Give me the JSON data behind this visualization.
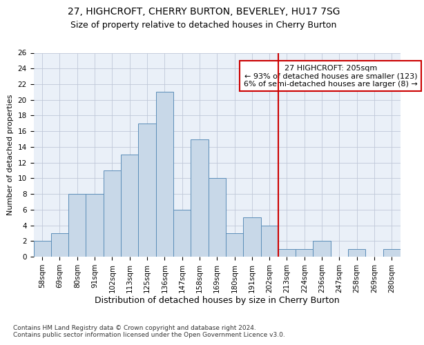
{
  "title1": "27, HIGHCROFT, CHERRY BURTON, BEVERLEY, HU17 7SG",
  "title2": "Size of property relative to detached houses in Cherry Burton",
  "xlabel": "Distribution of detached houses by size in Cherry Burton",
  "ylabel": "Number of detached properties",
  "footnote": "Contains HM Land Registry data © Crown copyright and database right 2024.\nContains public sector information licensed under the Open Government Licence v3.0.",
  "bin_labels": [
    "58sqm",
    "69sqm",
    "80sqm",
    "91sqm",
    "102sqm",
    "113sqm",
    "125sqm",
    "136sqm",
    "147sqm",
    "158sqm",
    "169sqm",
    "180sqm",
    "191sqm",
    "202sqm",
    "213sqm",
    "224sqm",
    "236sqm",
    "247sqm",
    "258sqm",
    "269sqm",
    "280sqm"
  ],
  "bar_heights": [
    2,
    3,
    8,
    8,
    11,
    13,
    17,
    21,
    6,
    15,
    10,
    3,
    5,
    4,
    1,
    1,
    2,
    0,
    1,
    0,
    1
  ],
  "bar_color": "#c8d8e8",
  "bar_edge_color": "#5b8db8",
  "subject_line_color": "#cc0000",
  "annotation_text": "27 HIGHCROFT: 205sqm\n← 93% of detached houses are smaller (123)\n6% of semi-detached houses are larger (8) →",
  "annotation_box_color": "#cc0000",
  "ylim": [
    0,
    26
  ],
  "yticks": [
    0,
    2,
    4,
    6,
    8,
    10,
    12,
    14,
    16,
    18,
    20,
    22,
    24,
    26
  ],
  "grid_color": "#c0c8d8",
  "background_color": "#eaf0f8",
  "title1_fontsize": 10,
  "title2_fontsize": 9,
  "ylabel_fontsize": 8,
  "xlabel_fontsize": 9,
  "footnote_fontsize": 6.5,
  "tick_fontsize": 7.5,
  "annotation_fontsize": 8
}
